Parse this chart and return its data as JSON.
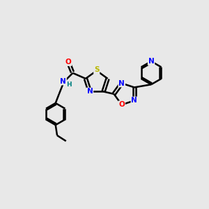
{
  "background_color": "#e8e8e8",
  "bond_color": "#000000",
  "atom_colors": {
    "S": "#b8b800",
    "N": "#0000ff",
    "O": "#ff0000",
    "C": "#000000",
    "H": "#008080"
  }
}
